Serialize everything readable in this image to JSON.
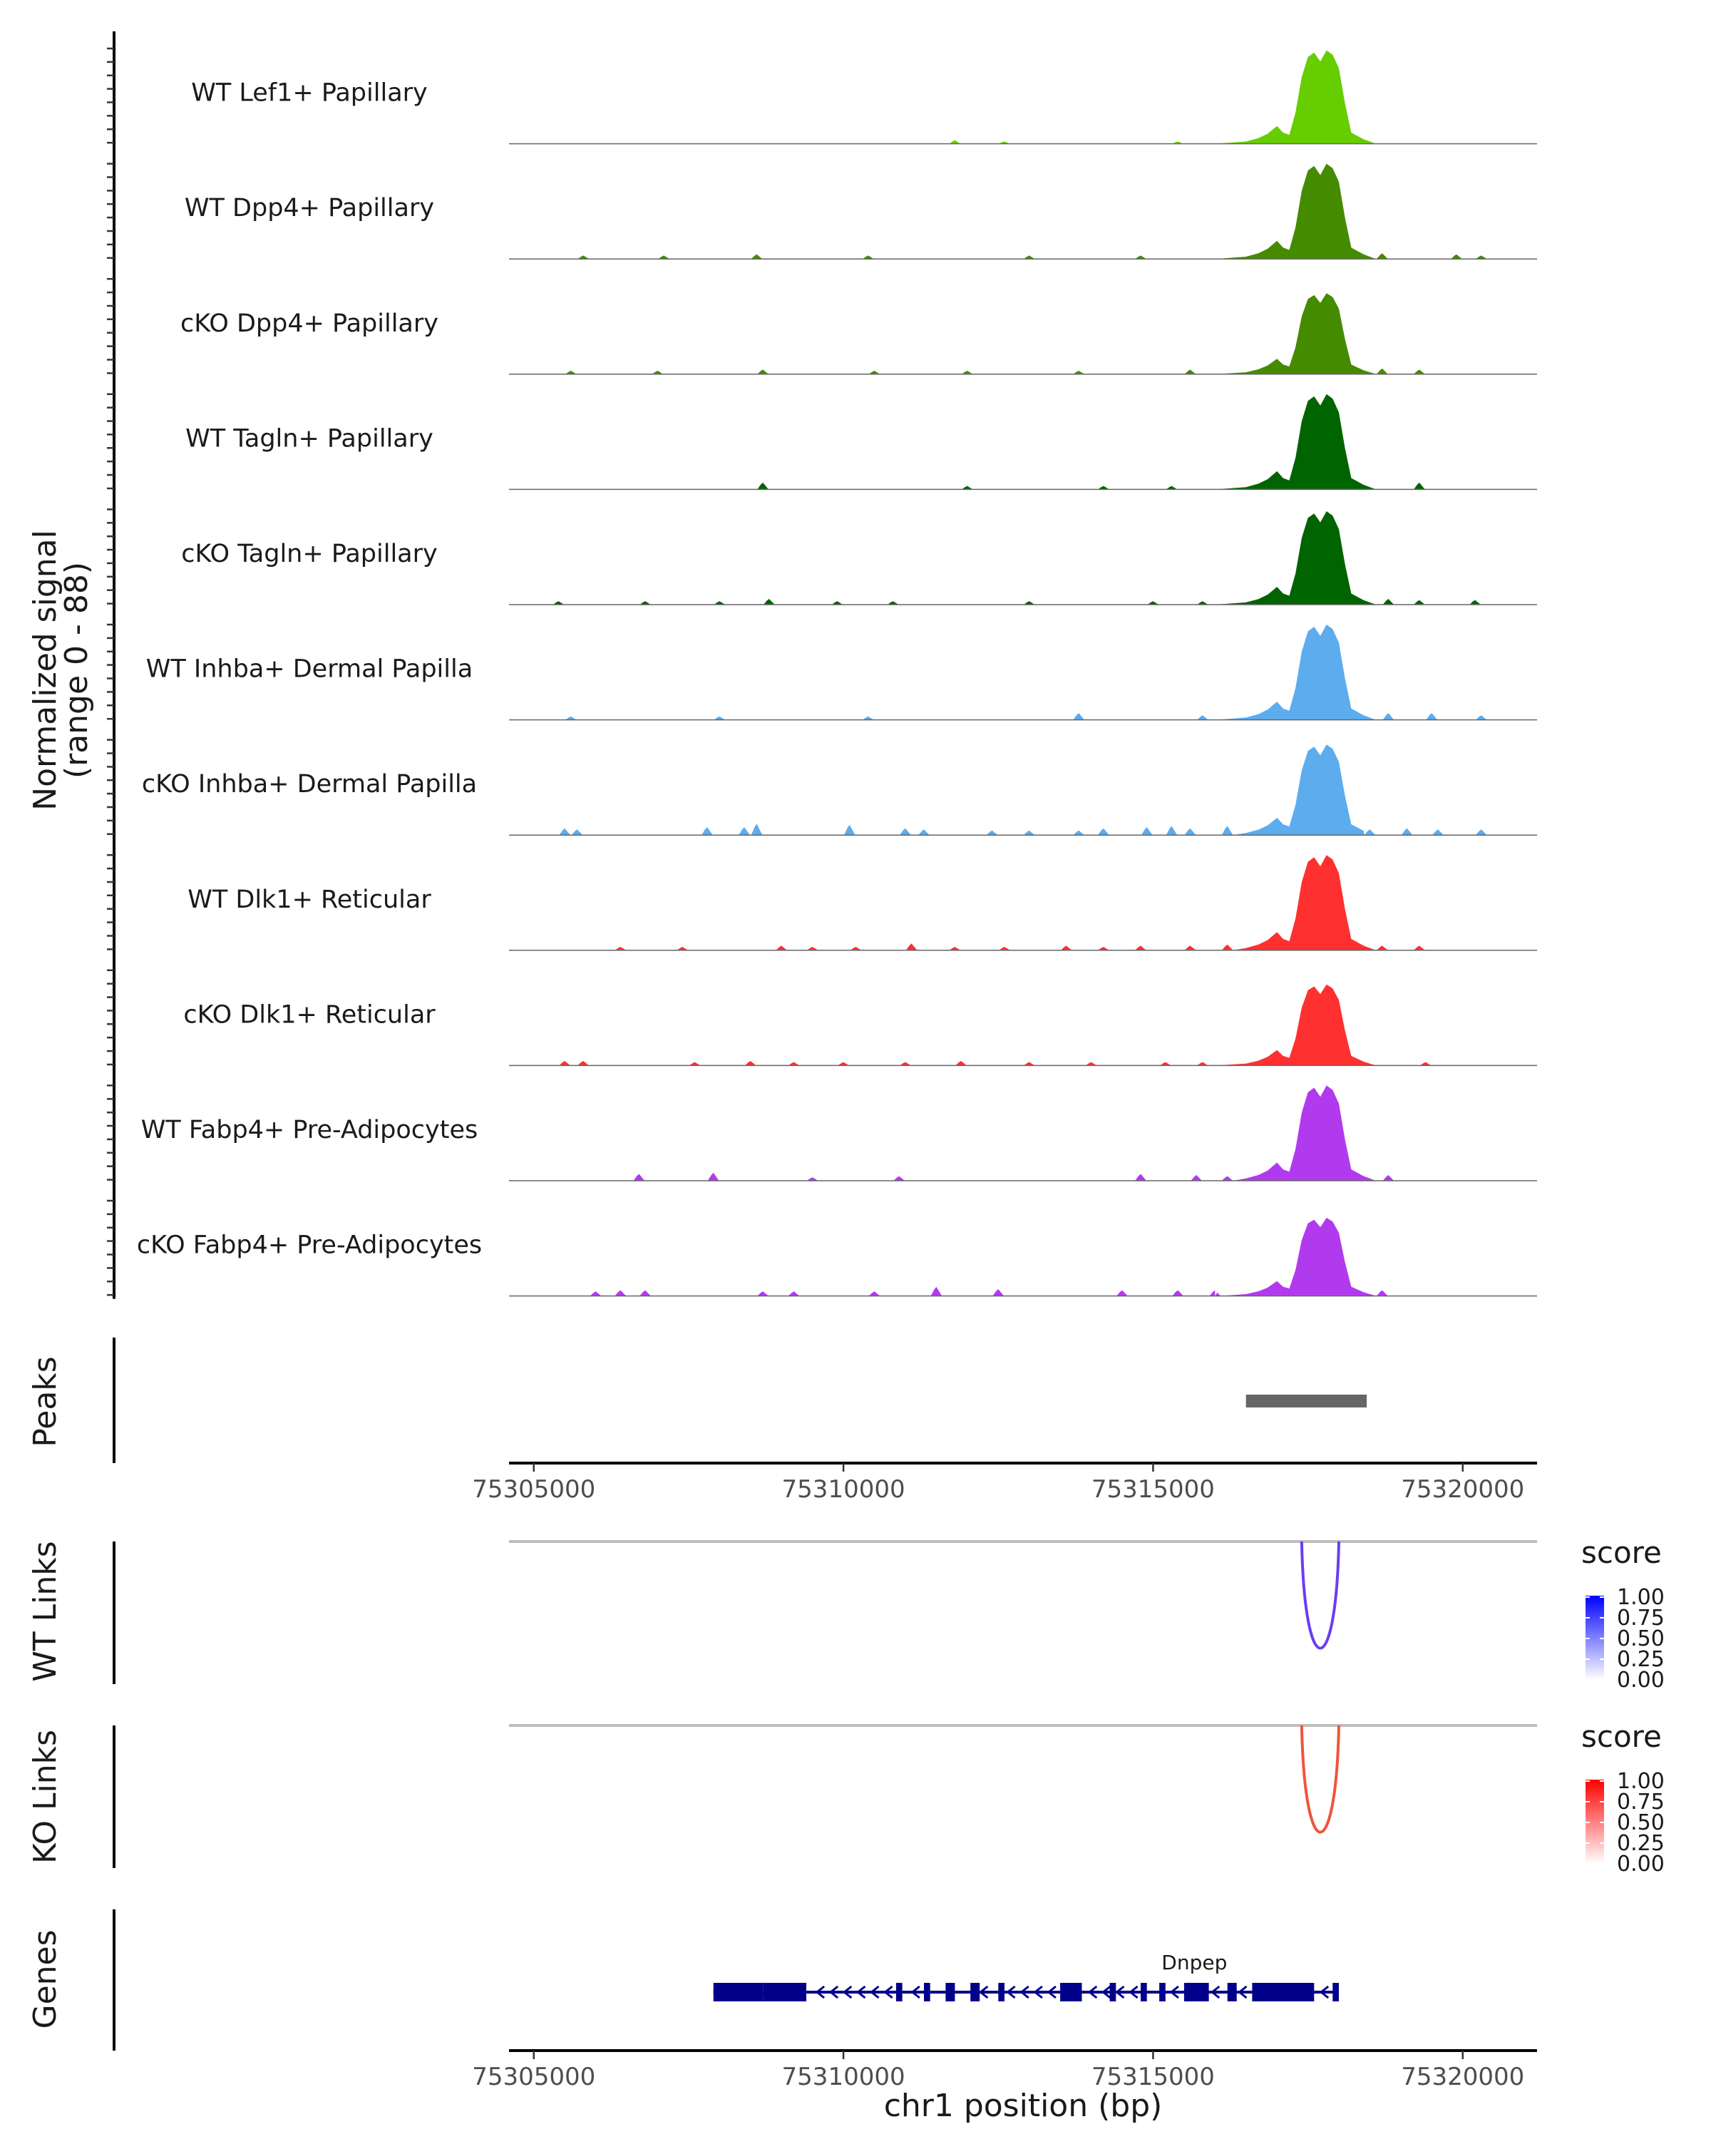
{
  "chart_data": {
    "type": "area",
    "figure": "Coverage plot",
    "chromosome": "chr1",
    "xlabel": "chr1 position (bp)",
    "xlim": [
      75304600,
      75321200
    ],
    "x_ticks": [
      75305000,
      75310000,
      75315000,
      75320000
    ],
    "x_tick_labels": [
      "75305000",
      "75310000",
      "75315000",
      "75320000"
    ],
    "coverage": {
      "ylabel_line1": "Normalized signal",
      "ylabel_line2": "(range 0 - 88)",
      "ylim": [
        0,
        88
      ],
      "tracks": [
        {
          "name": "WT Lef1+ Papillary",
          "color": "#66CD00",
          "peak_scale": 0.98,
          "bg": [
            [
              75311800,
              3
            ],
            [
              75312600,
              2
            ],
            [
              75315400,
              2
            ]
          ]
        },
        {
          "name": "WT Dpp4+ Papillary",
          "color": "#458B00",
          "peak_scale": 1.0,
          "bg": [
            [
              75305800,
              3
            ],
            [
              75307100,
              3
            ],
            [
              75308600,
              4
            ],
            [
              75310400,
              3
            ],
            [
              75313000,
              3
            ],
            [
              75314800,
              3
            ],
            [
              75318700,
              5
            ],
            [
              75319900,
              4
            ],
            [
              75320300,
              3
            ]
          ]
        },
        {
          "name": "cKO Dpp4+ Papillary",
          "color": "#458B00",
          "peak_scale": 0.85,
          "bg": [
            [
              75305600,
              3
            ],
            [
              75307000,
              3
            ],
            [
              75308700,
              4
            ],
            [
              75310500,
              3
            ],
            [
              75312000,
              3
            ],
            [
              75313800,
              3
            ],
            [
              75315600,
              4
            ],
            [
              75318700,
              5
            ],
            [
              75319300,
              4
            ]
          ]
        },
        {
          "name": "WT Tagln+ Papillary",
          "color": "#006400",
          "peak_scale": 1.0,
          "bg": [
            [
              75308700,
              6
            ],
            [
              75312000,
              3
            ],
            [
              75314200,
              3
            ],
            [
              75315300,
              3
            ],
            [
              75319300,
              6
            ]
          ]
        },
        {
          "name": "cKO Tagln+ Papillary",
          "color": "#006400",
          "peak_scale": 0.98,
          "bg": [
            [
              75305400,
              3
            ],
            [
              75306800,
              3
            ],
            [
              75308000,
              3
            ],
            [
              75308800,
              5
            ],
            [
              75309900,
              3
            ],
            [
              75310800,
              3
            ],
            [
              75313000,
              3
            ],
            [
              75315000,
              3
            ],
            [
              75315800,
              3
            ],
            [
              75318800,
              5
            ],
            [
              75319300,
              4
            ],
            [
              75320200,
              4
            ]
          ]
        },
        {
          "name": "WT Inhba+ Dermal Papilla",
          "color": "#5CACEE",
          "peak_scale": 1.0,
          "bg": [
            [
              75305600,
              3
            ],
            [
              75308000,
              3
            ],
            [
              75310400,
              3
            ],
            [
              75313800,
              6
            ],
            [
              75315800,
              4
            ],
            [
              75318800,
              6
            ],
            [
              75319500,
              6
            ],
            [
              75320300,
              4
            ]
          ]
        },
        {
          "name": "cKO Inhba+ Dermal Papilla",
          "color": "#5CACEE",
          "peak_scale": 0.95,
          "bg": [
            [
              75305500,
              6
            ],
            [
              75305700,
              5
            ],
            [
              75307800,
              7
            ],
            [
              75308400,
              7
            ],
            [
              75308600,
              10
            ],
            [
              75310100,
              9
            ],
            [
              75311000,
              6
            ],
            [
              75311300,
              5
            ],
            [
              75312400,
              4
            ],
            [
              75313000,
              4
            ],
            [
              75313800,
              4
            ],
            [
              75314200,
              6
            ],
            [
              75314900,
              7
            ],
            [
              75315300,
              8
            ],
            [
              75315600,
              6
            ],
            [
              75316200,
              8
            ],
            [
              75318500,
              5
            ],
            [
              75319100,
              6
            ],
            [
              75319600,
              5
            ],
            [
              75320300,
              5
            ]
          ]
        },
        {
          "name": "WT Dlk1+ Reticular",
          "color": "#FF3030",
          "peak_scale": 1.0,
          "bg": [
            [
              75306400,
              3
            ],
            [
              75307400,
              3
            ],
            [
              75309000,
              4
            ],
            [
              75309500,
              3
            ],
            [
              75310200,
              3
            ],
            [
              75311100,
              6
            ],
            [
              75311800,
              3
            ],
            [
              75312600,
              3
            ],
            [
              75313600,
              4
            ],
            [
              75314200,
              3
            ],
            [
              75314800,
              4
            ],
            [
              75315600,
              4
            ],
            [
              75316200,
              5
            ],
            [
              75318700,
              4
            ],
            [
              75319300,
              4
            ]
          ]
        },
        {
          "name": "cKO Dlk1+ Reticular",
          "color": "#FF3030",
          "peak_scale": 0.85,
          "bg": [
            [
              75305500,
              4
            ],
            [
              75305800,
              4
            ],
            [
              75307600,
              3
            ],
            [
              75308500,
              4
            ],
            [
              75309200,
              3
            ],
            [
              75310000,
              3
            ],
            [
              75311000,
              3
            ],
            [
              75311900,
              4
            ],
            [
              75313000,
              3
            ],
            [
              75314000,
              3
            ],
            [
              75315200,
              3
            ],
            [
              75315800,
              3
            ],
            [
              75319400,
              3
            ]
          ]
        },
        {
          "name": "WT Fabp4+ Pre-Adipocytes",
          "color": "#B23AEE",
          "peak_scale": 1.0,
          "bg": [
            [
              75306700,
              6
            ],
            [
              75307900,
              7
            ],
            [
              75309500,
              3
            ],
            [
              75310900,
              4
            ],
            [
              75314800,
              6
            ],
            [
              75315700,
              5
            ],
            [
              75316200,
              4
            ],
            [
              75318800,
              5
            ]
          ]
        },
        {
          "name": "cKO Fabp4+ Pre-Adipocytes",
          "color": "#B23AEE",
          "peak_scale": 0.82,
          "bg": [
            [
              75306000,
              4
            ],
            [
              75306400,
              5
            ],
            [
              75306800,
              5
            ],
            [
              75308700,
              4
            ],
            [
              75309200,
              4
            ],
            [
              75310500,
              4
            ],
            [
              75311500,
              8
            ],
            [
              75312500,
              6
            ],
            [
              75314500,
              5
            ],
            [
              75315400,
              5
            ],
            [
              75316000,
              5
            ],
            [
              75318700,
              5
            ]
          ]
        }
      ],
      "peak_shape": [
        [
          75316000,
          0
        ],
        [
          75316500,
          2
        ],
        [
          75316700,
          5
        ],
        [
          75316850,
          9
        ],
        [
          75317000,
          16
        ],
        [
          75317100,
          10
        ],
        [
          75317200,
          8
        ],
        [
          75317300,
          28
        ],
        [
          75317400,
          60
        ],
        [
          75317500,
          78
        ],
        [
          75317600,
          82
        ],
        [
          75317700,
          74
        ],
        [
          75317800,
          84
        ],
        [
          75317900,
          80
        ],
        [
          75318000,
          68
        ],
        [
          75318100,
          36
        ],
        [
          75318200,
          10
        ],
        [
          75318400,
          4
        ],
        [
          75318600,
          0
        ]
      ]
    },
    "peaks": {
      "label": "Peaks",
      "regions": [
        [
          75316500,
          75318450
        ]
      ],
      "color": "#666666"
    },
    "links": [
      {
        "label": "WT Links",
        "color": "#6A3DF0",
        "from": 75317400,
        "to": 75318000,
        "score": 0.85,
        "legend": {
          "title": "score",
          "ticks": [
            "1.00",
            "0.75",
            "0.50",
            "0.25",
            "0.00"
          ],
          "low": "#FFFFFF",
          "high": "#0000FF"
        }
      },
      {
        "label": "KO Links",
        "color": "#F0553A",
        "from": 75317400,
        "to": 75318000,
        "score": 0.85,
        "legend": {
          "title": "score",
          "ticks": [
            "1.00",
            "0.75",
            "0.50",
            "0.25",
            "0.00"
          ],
          "low": "#FFFFFF",
          "high": "#FF0000"
        }
      }
    ],
    "genes": {
      "label": "Genes",
      "color": "#00008B",
      "name": "Dnpep",
      "start": 75307900,
      "end": 75318000,
      "strand": "-",
      "exons": [
        [
          75307900,
          75308700
        ],
        [
          75308700,
          75309400
        ],
        [
          75310850,
          75310950
        ],
        [
          75311300,
          75311400
        ],
        [
          75311650,
          75311800
        ],
        [
          75312050,
          75312200
        ],
        [
          75312500,
          75312600
        ],
        [
          75313500,
          75313850
        ],
        [
          75314300,
          75314400
        ],
        [
          75314800,
          75314900
        ],
        [
          75315100,
          75315200
        ],
        [
          75315500,
          75315900
        ],
        [
          75316200,
          75316350
        ],
        [
          75316600,
          75317600
        ],
        [
          75317900,
          75318000
        ]
      ]
    }
  }
}
